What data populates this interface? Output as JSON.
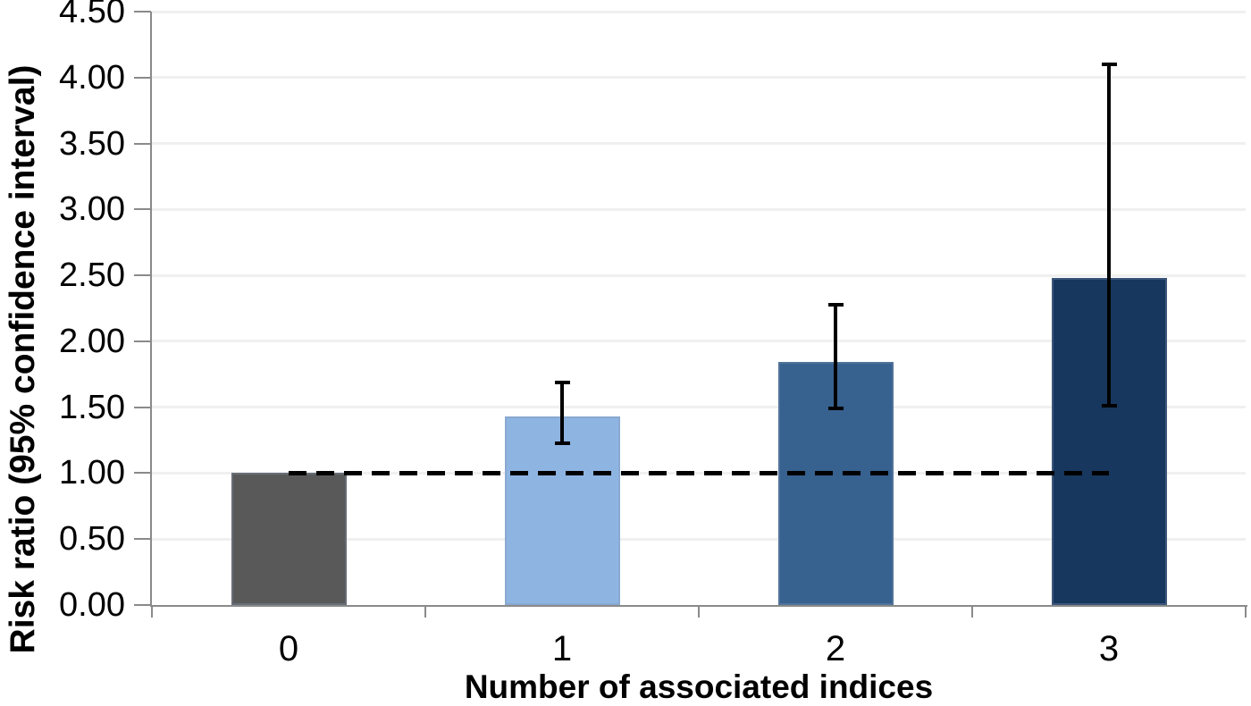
{
  "chart_data": {
    "type": "bar",
    "title": "",
    "xlabel": "Number of associated indices",
    "ylabel": "Risk ratio (95% confidence interval)",
    "categories": [
      "0",
      "1",
      "2",
      "3"
    ],
    "values": [
      1.0,
      1.43,
      1.84,
      2.48
    ],
    "error_bars": [
      {
        "low": null,
        "high": null
      },
      {
        "low": 1.23,
        "high": 1.69
      },
      {
        "low": 1.49,
        "high": 2.28
      },
      {
        "low": 1.51,
        "high": 4.1
      }
    ],
    "bar_colors": [
      "#595959",
      "#8EB4E2",
      "#37618F",
      "#17375E"
    ],
    "reference_line": {
      "value": 1.0,
      "style": "dashed",
      "color": "#000000",
      "from_category": 0,
      "to_category": 3
    },
    "ylim": [
      0,
      4.5
    ],
    "ytick_step": 0.5,
    "ytick_labels": [
      "0.00",
      "0.50",
      "1.00",
      "1.50",
      "2.00",
      "2.50",
      "3.00",
      "3.50",
      "4.00",
      "4.50"
    ],
    "grid": true,
    "legend_position": "none"
  },
  "style": {
    "axis_color": "#8A8A8A",
    "gridline_color": "#F0F0F0",
    "text_color": "#000000",
    "error_bar_color": "#000000",
    "background": "#FFFFFF"
  }
}
